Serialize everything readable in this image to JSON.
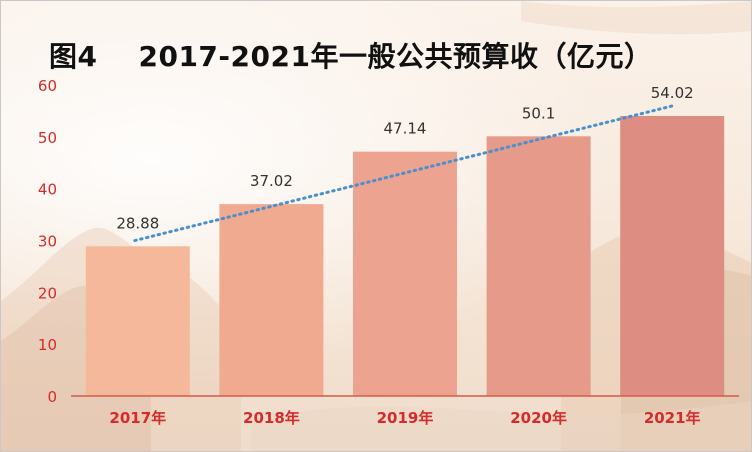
{
  "chart_data": {
    "type": "bar",
    "title": "图4    2017-2021年一般公共预算收（亿元）",
    "categories": [
      "2017年",
      "2018年",
      "2019年",
      "2020年",
      "2021年"
    ],
    "values": [
      28.88,
      37.02,
      47.14,
      50.1,
      54.02
    ],
    "value_labels": [
      "28.88",
      "37.02",
      "47.14",
      "50.1",
      "54.02"
    ],
    "ylim": [
      0,
      60
    ],
    "yticks": [
      "0",
      "10",
      "20",
      "30",
      "40",
      "50",
      "60"
    ],
    "trendline": {
      "type": "linear",
      "style": "dotted"
    },
    "grid": false,
    "legend": "none",
    "colors": {
      "bars": [
        "#f5b89a",
        "#efaa8f",
        "#eca38f",
        "#e69a89",
        "#de8d82"
      ],
      "axis_text": "#d42b2b",
      "axis_line": "#d45a4a",
      "trend": "#4a8fce",
      "value_label": "#333333"
    }
  }
}
